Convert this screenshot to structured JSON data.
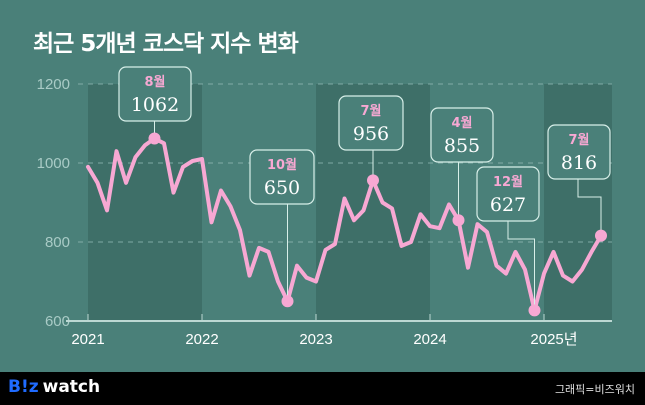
{
  "header": {
    "title": "최근 5개년 코스닥 지수 변화"
  },
  "footer": {
    "logo_b": "B!z",
    "logo_w": "watch",
    "credit": "그래픽=비즈워치"
  },
  "colors": {
    "background": "#4a8079",
    "band_dark": "#3e6f68",
    "line": "#f7a8d3",
    "grid": "#8fb8b2",
    "axis": "#bcd8d3",
    "callout_border": "#d8efe9"
  },
  "chart_data": {
    "type": "line",
    "title": "최근 5개년 코스닥 지수 변화",
    "xlabel": "",
    "ylabel": "",
    "ylim": [
      600,
      1200
    ],
    "yticks": [
      600,
      800,
      1000,
      1200
    ],
    "xticks": [
      "2021",
      "2022",
      "2023",
      "2024",
      "2025년"
    ],
    "grid": true,
    "x": [
      "2021-01",
      "2021-02",
      "2021-03",
      "2021-04",
      "2021-05",
      "2021-06",
      "2021-07",
      "2021-08",
      "2021-09",
      "2021-10",
      "2021-11",
      "2021-12",
      "2022-01",
      "2022-02",
      "2022-03",
      "2022-04",
      "2022-05",
      "2022-06",
      "2022-07",
      "2022-08",
      "2022-09",
      "2022-10",
      "2022-11",
      "2022-12",
      "2023-01",
      "2023-02",
      "2023-03",
      "2023-04",
      "2023-05",
      "2023-06",
      "2023-07",
      "2023-08",
      "2023-09",
      "2023-10",
      "2023-11",
      "2023-12",
      "2024-01",
      "2024-02",
      "2024-03",
      "2024-04",
      "2024-05",
      "2024-06",
      "2024-07",
      "2024-08",
      "2024-09",
      "2024-10",
      "2024-11",
      "2024-12",
      "2025-01",
      "2025-02",
      "2025-03",
      "2025-04",
      "2025-05",
      "2025-06",
      "2025-07"
    ],
    "series": [
      {
        "name": "코스닥 지수",
        "values": [
          990,
          950,
          880,
          1030,
          950,
          1015,
          1045,
          1062,
          1050,
          925,
          990,
          1005,
          1010,
          850,
          930,
          890,
          830,
          715,
          785,
          775,
          700,
          650,
          740,
          710,
          700,
          780,
          795,
          910,
          855,
          880,
          956,
          900,
          885,
          790,
          800,
          870,
          840,
          835,
          895,
          855,
          735,
          845,
          825,
          740,
          720,
          775,
          730,
          627,
          720,
          775,
          715,
          700,
          730,
          775,
          816
        ]
      }
    ],
    "annotations": [
      {
        "month": "8월",
        "value": "1062",
        "index": 7
      },
      {
        "month": "10월",
        "value": "650",
        "index": 21
      },
      {
        "month": "7월",
        "value": "956",
        "index": 30
      },
      {
        "month": "4월",
        "value": "855",
        "index": 39
      },
      {
        "month": "12월",
        "value": "627",
        "index": 47
      },
      {
        "month": "7월",
        "value": "816",
        "index": 54
      }
    ]
  }
}
